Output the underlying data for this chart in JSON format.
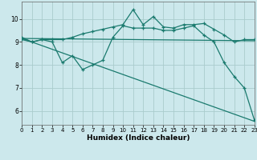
{
  "title": "",
  "xlabel": "Humidex (Indice chaleur)",
  "bg_color": "#cce8ec",
  "grid_color": "#aacccc",
  "line_color": "#1a7a6e",
  "xlim": [
    0,
    23
  ],
  "ylim": [
    5.4,
    10.75
  ],
  "xticks": [
    0,
    1,
    2,
    3,
    4,
    5,
    6,
    7,
    8,
    9,
    10,
    11,
    12,
    13,
    14,
    15,
    16,
    17,
    18,
    19,
    20,
    21,
    22,
    23
  ],
  "yticks": [
    6,
    7,
    8,
    9,
    10
  ],
  "line1_x": [
    0,
    1,
    2,
    3,
    4,
    5,
    6,
    7,
    8,
    9,
    10,
    11,
    12,
    13,
    14,
    15,
    16,
    17,
    18,
    19,
    20,
    21,
    22,
    23
  ],
  "line1_y": [
    9.1,
    9.0,
    9.1,
    9.0,
    8.1,
    8.4,
    7.8,
    8.0,
    8.2,
    9.2,
    9.7,
    9.6,
    9.6,
    9.6,
    9.5,
    9.5,
    9.6,
    9.7,
    9.3,
    9.0,
    8.1,
    7.5,
    7.0,
    5.6
  ],
  "line2_x": [
    0,
    1,
    2,
    3,
    4,
    5,
    6,
    7,
    8,
    9,
    10,
    11,
    12,
    13,
    14,
    15,
    16,
    17,
    18,
    19,
    20,
    21,
    22,
    23
  ],
  "line2_y": [
    9.2,
    9.0,
    9.1,
    9.1,
    9.1,
    9.2,
    9.35,
    9.45,
    9.55,
    9.65,
    9.75,
    10.4,
    9.75,
    10.1,
    9.65,
    9.6,
    9.75,
    9.75,
    9.8,
    9.55,
    9.3,
    9.0,
    9.1,
    9.1
  ],
  "line3_x": [
    0,
    23
  ],
  "line3_y": [
    9.15,
    9.05
  ],
  "line4_x": [
    0,
    23
  ],
  "line4_y": [
    9.15,
    5.55
  ]
}
